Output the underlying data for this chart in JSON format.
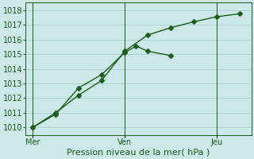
{
  "xlabel": "Pression niveau de la mer( hPa )",
  "bg_color": "#cce8e8",
  "grid_color": "#aacccc",
  "line_color": "#1a5c1a",
  "ylim": [
    1009.5,
    1018.5
  ],
  "yticks": [
    1010,
    1011,
    1012,
    1013,
    1014,
    1015,
    1016,
    1017,
    1018
  ],
  "x_tick_labels": [
    "Mer",
    "Ven",
    "Jeu"
  ],
  "x_tick_positions": [
    0,
    4,
    8
  ],
  "vline_x": [
    0,
    4,
    8
  ],
  "line1_x": [
    0,
    1,
    2,
    3,
    4,
    4.5,
    5,
    6
  ],
  "line1_y": [
    1010.0,
    1010.9,
    1012.7,
    1013.6,
    1015.1,
    1015.55,
    1015.2,
    1014.9
  ],
  "line2_x": [
    0,
    1,
    2,
    3,
    4,
    5,
    6,
    7,
    8,
    9
  ],
  "line2_y": [
    1010.0,
    1011.0,
    1012.2,
    1013.2,
    1015.2,
    1016.3,
    1016.8,
    1017.2,
    1017.55,
    1017.75
  ],
  "marker": "D",
  "marker_size": 3,
  "line_width": 1.0,
  "font_size": 7,
  "xlabel_font_size": 8
}
